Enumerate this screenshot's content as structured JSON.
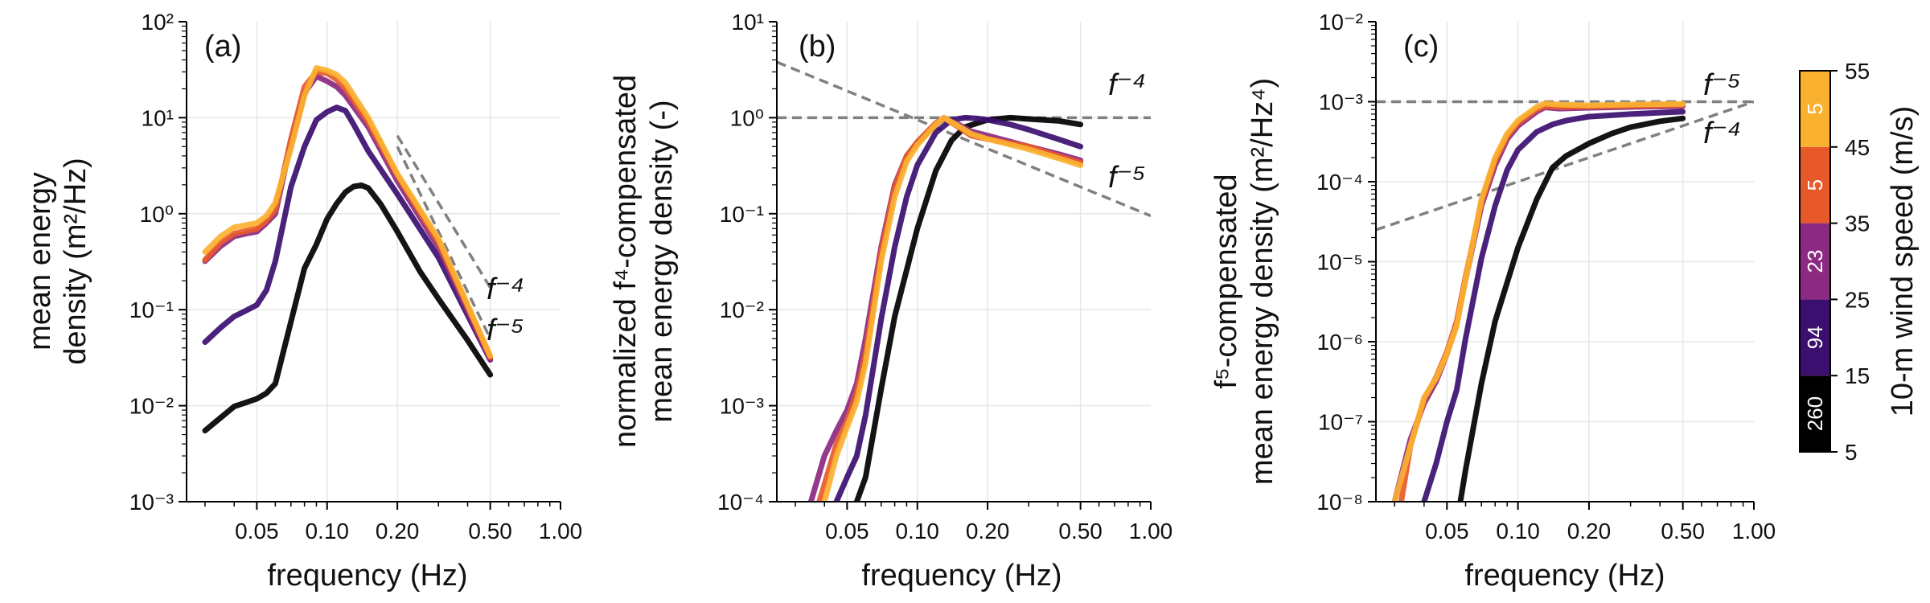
{
  "xlabel": "frequency (Hz)",
  "colors": {
    "grid": "#e6e6e6",
    "reference": "#808080",
    "bins": [
      "#000000",
      "#3b0f70",
      "#8c2981",
      "#e8592a",
      "#fbb130"
    ]
  },
  "panels": [
    {
      "id": "a",
      "letter": "(a)",
      "ylabel_lines": [
        "mean energy",
        "density (m²/Hz)"
      ],
      "ylog": [
        -3,
        2
      ],
      "xlim": [
        0.025,
        1.0
      ],
      "xticks": [
        "0.05",
        "0.10",
        "0.20",
        "0.50",
        "1.00"
      ],
      "yticks": [
        "10⁻³",
        "10⁻²",
        "10⁻¹",
        "10⁰",
        "10¹",
        "10²"
      ],
      "refs": [
        "f⁻⁴",
        "f⁻⁵"
      ]
    },
    {
      "id": "b",
      "letter": "(b)",
      "ylabel_lines": [
        "normalized f⁴-compensated",
        "mean energy density (-)"
      ],
      "ylog": [
        -4,
        1
      ],
      "xlim": [
        0.025,
        1.0
      ],
      "xticks": [
        "0.05",
        "0.10",
        "0.20",
        "0.50",
        "1.00"
      ],
      "yticks": [
        "10⁻⁴",
        "10⁻³",
        "10⁻²",
        "10⁻¹",
        "10⁰",
        "10¹"
      ],
      "refs": [
        "f⁻⁴",
        "f⁻⁵"
      ]
    },
    {
      "id": "c",
      "letter": "(c)",
      "ylabel_lines": [
        "f⁵-compensated",
        "mean energy density (m²/Hz⁴)"
      ],
      "ylog": [
        -8,
        -2
      ],
      "xlim": [
        0.025,
        1.0
      ],
      "xticks": [
        "0.05",
        "0.10",
        "0.20",
        "0.50",
        "1.00"
      ],
      "yticks": [
        "10⁻⁸",
        "10⁻⁷",
        "10⁻⁶",
        "10⁻⁵",
        "10⁻⁴",
        "10⁻³",
        "10⁻²"
      ],
      "refs": [
        "f⁻⁵",
        "f⁻⁴"
      ]
    }
  ],
  "colorbar": {
    "label": "10-m wind speed (m/s)",
    "ticks": [
      "5",
      "15",
      "25",
      "35",
      "45",
      "55"
    ],
    "counts": [
      "260",
      "94",
      "23",
      "5",
      "5"
    ]
  },
  "chart_data": [
    {
      "type": "line",
      "panel": "a",
      "x_scale": "log",
      "y_scale": "log",
      "xlabel": "frequency (Hz)",
      "ylabel": "mean energy density (m²/Hz)",
      "xlim": [
        0.025,
        1.0
      ],
      "ylim": [
        0.001,
        100
      ],
      "grid": true,
      "series": [
        {
          "name": "5–15 m/s (260)",
          "color": "#000000",
          "x": [
            0.03,
            0.035,
            0.04,
            0.045,
            0.05,
            0.055,
            0.06,
            0.07,
            0.08,
            0.09,
            0.1,
            0.11,
            0.12,
            0.13,
            0.14,
            0.15,
            0.17,
            0.2,
            0.25,
            0.3,
            0.4,
            0.5
          ],
          "y": [
            0.0055,
            0.0075,
            0.0098,
            0.0108,
            0.0118,
            0.0135,
            0.017,
            0.075,
            0.27,
            0.48,
            0.88,
            1.28,
            1.68,
            1.92,
            1.98,
            1.85,
            1.25,
            0.65,
            0.25,
            0.13,
            0.048,
            0.021
          ]
        },
        {
          "name": "15–25 m/s (94)",
          "color": "#3b0f70",
          "x": [
            0.03,
            0.035,
            0.04,
            0.045,
            0.05,
            0.055,
            0.06,
            0.07,
            0.08,
            0.09,
            0.1,
            0.11,
            0.12,
            0.13,
            0.15,
            0.2,
            0.3,
            0.5
          ],
          "y": [
            0.046,
            0.065,
            0.085,
            0.098,
            0.112,
            0.16,
            0.32,
            1.9,
            5.0,
            9.5,
            11.5,
            12.8,
            11.8,
            8.5,
            4.5,
            1.6,
            0.35,
            0.03
          ]
        },
        {
          "name": "25–35 m/s (23)",
          "color": "#8c2981",
          "x": [
            0.03,
            0.035,
            0.04,
            0.045,
            0.05,
            0.055,
            0.06,
            0.07,
            0.08,
            0.09,
            0.1,
            0.11,
            0.12,
            0.15,
            0.2,
            0.3,
            0.5
          ],
          "y": [
            0.32,
            0.46,
            0.58,
            0.62,
            0.65,
            0.8,
            1.0,
            5.5,
            18.0,
            27.0,
            24.0,
            21.0,
            17.0,
            8.0,
            2.2,
            0.45,
            0.03
          ]
        },
        {
          "name": "35–45 m/s (5)",
          "color": "#e8592a",
          "x": [
            0.03,
            0.035,
            0.04,
            0.045,
            0.05,
            0.055,
            0.06,
            0.07,
            0.08,
            0.09,
            0.1,
            0.11,
            0.12,
            0.15,
            0.2,
            0.3,
            0.5
          ],
          "y": [
            0.33,
            0.5,
            0.62,
            0.66,
            0.7,
            0.85,
            1.1,
            6.0,
            21.0,
            30.0,
            29.0,
            25.0,
            20.0,
            9.0,
            2.5,
            0.5,
            0.032
          ]
        },
        {
          "name": "45–55 m/s (5)",
          "color": "#fbb130",
          "x": [
            0.03,
            0.035,
            0.04,
            0.045,
            0.05,
            0.055,
            0.06,
            0.07,
            0.08,
            0.09,
            0.1,
            0.11,
            0.12,
            0.15,
            0.2,
            0.3,
            0.5
          ],
          "y": [
            0.4,
            0.58,
            0.72,
            0.76,
            0.8,
            0.95,
            1.3,
            4.8,
            17.0,
            33.0,
            31.0,
            28.0,
            23.0,
            10.0,
            2.6,
            0.55,
            0.033
          ]
        }
      ],
      "reference_lines": [
        {
          "label": "f⁻⁴",
          "x": [
            0.2,
            0.5
          ],
          "y": [
            6.5,
            0.17
          ]
        },
        {
          "label": "f⁻⁵",
          "x": [
            0.2,
            0.5
          ],
          "y": [
            5.0,
            0.05
          ]
        }
      ]
    },
    {
      "type": "line",
      "panel": "b",
      "x_scale": "log",
      "y_scale": "log",
      "xlabel": "frequency (Hz)",
      "ylabel": "normalized f⁴-compensated mean energy density (-)",
      "xlim": [
        0.025,
        1.0
      ],
      "ylim": [
        0.0001,
        10
      ],
      "grid": true,
      "series": [
        {
          "name": "5–15 m/s (260)",
          "color": "#000000",
          "x": [
            0.055,
            0.06,
            0.07,
            0.08,
            0.09,
            0.1,
            0.12,
            0.14,
            0.16,
            0.2,
            0.25,
            0.3,
            0.4,
            0.5
          ],
          "y": [
            0.0001,
            0.00018,
            0.0015,
            0.0085,
            0.026,
            0.07,
            0.28,
            0.58,
            0.8,
            0.95,
            1.0,
            0.97,
            0.93,
            0.85
          ]
        },
        {
          "name": "15–25 m/s (94)",
          "color": "#3b0f70",
          "x": [
            0.045,
            0.05,
            0.055,
            0.06,
            0.07,
            0.08,
            0.09,
            0.1,
            0.12,
            0.14,
            0.16,
            0.18,
            0.2,
            0.25,
            0.3,
            0.4,
            0.5
          ],
          "y": [
            0.0001,
            0.00018,
            0.0003,
            0.0008,
            0.008,
            0.045,
            0.15,
            0.32,
            0.7,
            0.95,
            1.0,
            0.98,
            0.95,
            0.85,
            0.75,
            0.6,
            0.5
          ]
        },
        {
          "name": "25–35 m/s (23)",
          "color": "#8c2981",
          "x": [
            0.035,
            0.04,
            0.045,
            0.05,
            0.055,
            0.06,
            0.07,
            0.08,
            0.09,
            0.1,
            0.12,
            0.13,
            0.15,
            0.17,
            0.2,
            0.3,
            0.4,
            0.5
          ],
          "y": [
            0.0001,
            0.0003,
            0.00055,
            0.0009,
            0.0017,
            0.005,
            0.045,
            0.2,
            0.4,
            0.55,
            0.85,
            0.98,
            0.85,
            0.72,
            0.65,
            0.5,
            0.42,
            0.36
          ]
        },
        {
          "name": "35–45 m/s (5)",
          "color": "#e8592a",
          "x": [
            0.038,
            0.045,
            0.05,
            0.055,
            0.06,
            0.07,
            0.08,
            0.09,
            0.1,
            0.12,
            0.13,
            0.15,
            0.17,
            0.2,
            0.3,
            0.4,
            0.5
          ],
          "y": [
            0.0001,
            0.0004,
            0.0007,
            0.0014,
            0.0035,
            0.04,
            0.19,
            0.4,
            0.56,
            0.88,
            1.0,
            0.8,
            0.65,
            0.6,
            0.5,
            0.4,
            0.34
          ]
        },
        {
          "name": "45–55 m/s (5)",
          "color": "#fbb130",
          "x": [
            0.04,
            0.045,
            0.05,
            0.055,
            0.06,
            0.07,
            0.08,
            0.09,
            0.1,
            0.12,
            0.13,
            0.15,
            0.17,
            0.2,
            0.3,
            0.4,
            0.5
          ],
          "y": [
            0.0001,
            0.0003,
            0.0006,
            0.0011,
            0.0028,
            0.032,
            0.15,
            0.35,
            0.52,
            0.85,
            1.0,
            0.82,
            0.68,
            0.6,
            0.47,
            0.38,
            0.32
          ]
        }
      ],
      "reference_lines": [
        {
          "label": "f⁻⁴",
          "x": [
            0.025,
            1.0
          ],
          "y": [
            1.0,
            1.0
          ]
        },
        {
          "label": "f⁻⁵",
          "x": [
            0.025,
            1.0
          ],
          "y": [
            3.8,
            0.095
          ]
        }
      ]
    },
    {
      "type": "line",
      "panel": "c",
      "x_scale": "log",
      "y_scale": "log",
      "xlabel": "frequency (Hz)",
      "ylabel": "f⁵-compensated mean energy density (m²/Hz⁴)",
      "xlim": [
        0.025,
        1.0
      ],
      "ylim": [
        1e-08,
        0.01
      ],
      "grid": true,
      "series": [
        {
          "name": "5–15 m/s (260)",
          "color": "#000000",
          "x": [
            0.057,
            0.06,
            0.07,
            0.08,
            0.09,
            0.1,
            0.12,
            0.14,
            0.16,
            0.2,
            0.25,
            0.3,
            0.4,
            0.5
          ],
          "y": [
            1e-08,
            2.5e-08,
            3e-07,
            1.8e-06,
            5.5e-06,
            1.5e-05,
            6e-05,
            0.00015,
            0.00021,
            0.0003,
            0.0004,
            0.00048,
            0.00057,
            0.00062
          ]
        },
        {
          "name": "15–25 m/s (94)",
          "color": "#3b0f70",
          "x": [
            0.04,
            0.045,
            0.05,
            0.055,
            0.06,
            0.07,
            0.08,
            0.09,
            0.1,
            0.12,
            0.14,
            0.16,
            0.2,
            0.3,
            0.4,
            0.5
          ],
          "y": [
            1e-08,
            3e-08,
            1e-07,
            2.5e-07,
            1.1e-06,
            1.1e-05,
            5e-05,
            0.00014,
            0.00025,
            0.00042,
            0.00052,
            0.00058,
            0.00065,
            0.0007,
            0.00073,
            0.00075
          ]
        },
        {
          "name": "25–35 m/s (23)",
          "color": "#8c2981",
          "x": [
            0.03,
            0.035,
            0.04,
            0.045,
            0.05,
            0.055,
            0.06,
            0.07,
            0.08,
            0.09,
            0.1,
            0.12,
            0.13,
            0.15,
            0.2,
            0.3,
            0.5
          ],
          "y": [
            1e-08,
            6e-08,
            1.7e-07,
            3.2e-07,
            7e-07,
            1.7e-06,
            6e-06,
            5e-05,
            0.00016,
            0.00034,
            0.0005,
            0.00075,
            0.00085,
            0.00082,
            0.00084,
            0.00086,
            0.00088
          ]
        },
        {
          "name": "35–45 m/s (5)",
          "color": "#e8592a",
          "x": [
            0.032,
            0.035,
            0.04,
            0.045,
            0.05,
            0.055,
            0.06,
            0.07,
            0.08,
            0.09,
            0.1,
            0.12,
            0.13,
            0.15,
            0.2,
            0.3,
            0.5
          ],
          "y": [
            1e-08,
            5e-08,
            1.9e-07,
            3.6e-07,
            7.5e-07,
            1.8e-06,
            6.5e-06,
            5.5e-05,
            0.00018,
            0.00037,
            0.00054,
            0.0008,
            0.00088,
            0.00086,
            0.00087,
            0.00089,
            0.00091
          ]
        },
        {
          "name": "45–55 m/s (5)",
          "color": "#fbb130",
          "x": [
            0.03,
            0.035,
            0.04,
            0.045,
            0.05,
            0.055,
            0.06,
            0.07,
            0.08,
            0.09,
            0.1,
            0.12,
            0.13,
            0.15,
            0.2,
            0.3,
            0.5
          ],
          "y": [
            1e-08,
            5e-08,
            2e-07,
            3.5e-07,
            7e-07,
            1.6e-06,
            6e-06,
            6e-05,
            0.0002,
            0.0004,
            0.00058,
            0.00086,
            0.00095,
            0.00092,
            0.0009,
            0.00092,
            0.00094
          ]
        }
      ],
      "reference_lines": [
        {
          "label": "f⁻⁵",
          "x": [
            0.025,
            1.0
          ],
          "y": [
            0.001,
            0.001
          ]
        },
        {
          "label": "f⁻⁴",
          "x": [
            0.025,
            1.0
          ],
          "y": [
            2.5e-05,
            0.001
          ]
        }
      ]
    }
  ]
}
